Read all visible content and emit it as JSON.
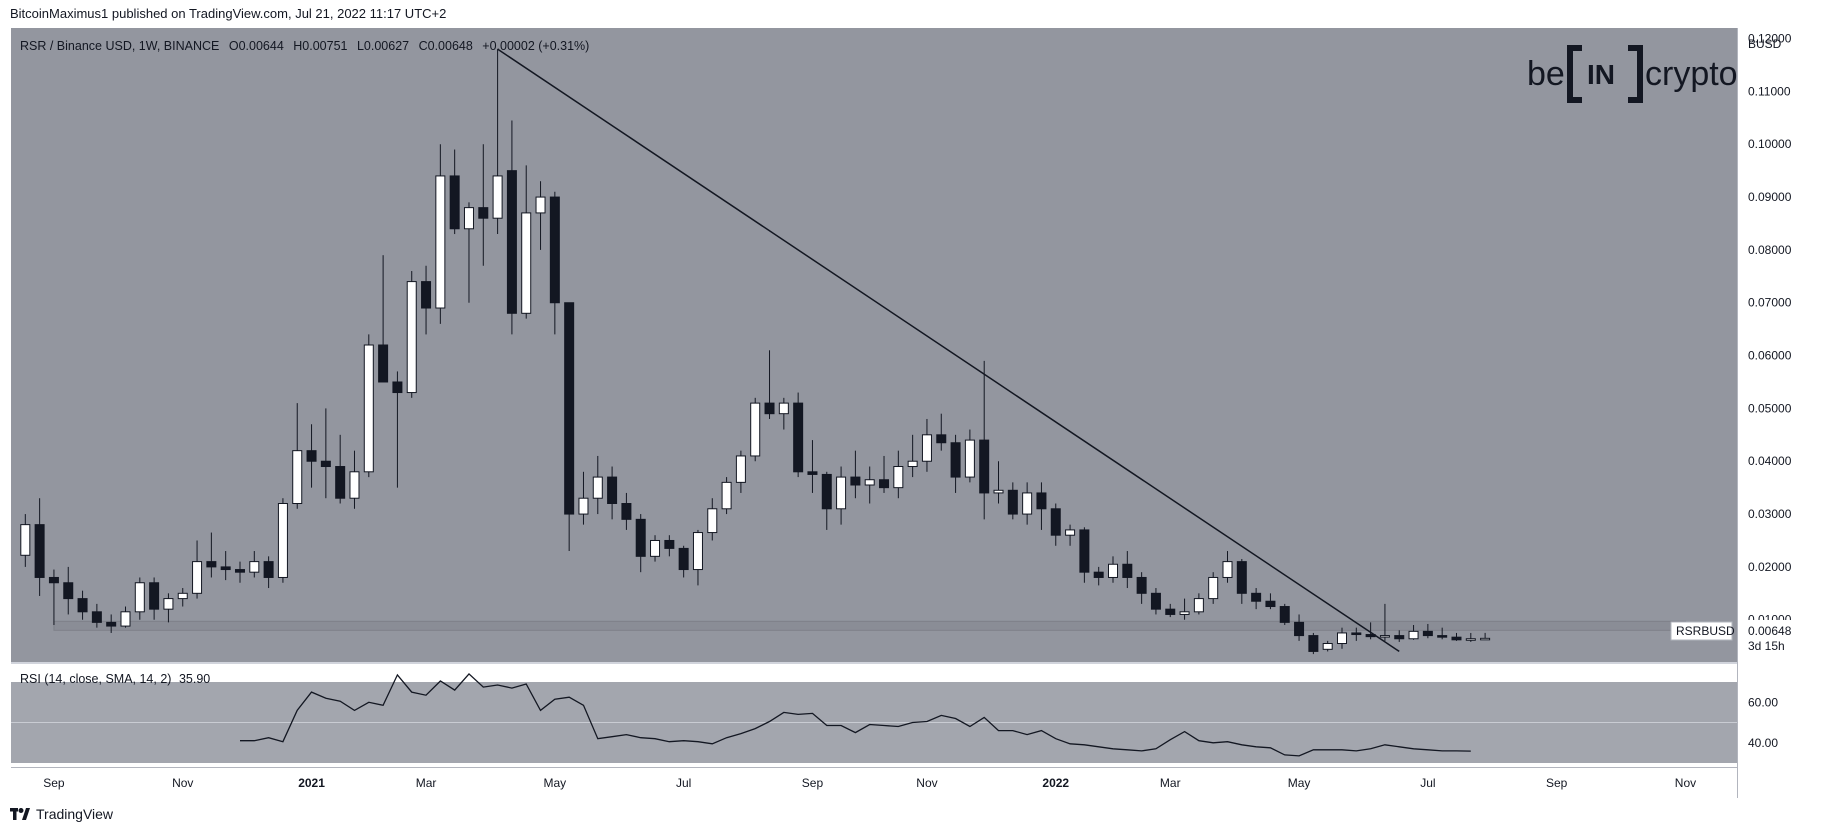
{
  "header": {
    "published": "BitcoinMaximus1 published on TradingView.com, Jul 21, 2022 11:17 UTC+2"
  },
  "legend": {
    "symbol": "RSR / Binance USD, 1W, BINANCE",
    "o_label": "O",
    "o": "0.00644",
    "h_label": "H",
    "h": "0.00751",
    "l_label": "L",
    "l": "0.00627",
    "c_label": "C",
    "c": "0.00648",
    "change": "+0.00002 (+0.31%)"
  },
  "brand": {
    "be": "be",
    "in": "IN",
    "crypto": "crypto"
  },
  "axis": {
    "currency": "BUSD"
  },
  "price_tag": {
    "symbol": "RSRBUSD",
    "value": "0.00648",
    "countdown": "3d 15h"
  },
  "rsi_legend": {
    "label": "RSI (14, close, SMA, 14, 2)",
    "value": "35.90"
  },
  "footer": {
    "brand": "TradingView"
  },
  "colors": {
    "background": "#93969f",
    "rsi_band": "#a3a6ae",
    "bull": "#ffffff",
    "bear": "#131722",
    "line": "#131722",
    "support_zone": "#8a8d96"
  },
  "chart_data": {
    "type": "candlestick",
    "timeframe": "1W",
    "price_axis": {
      "ylim": [
        0.002,
        0.122
      ],
      "ticks": [
        "0.12000",
        "0.11000",
        "0.10000",
        "0.09000",
        "0.08000",
        "0.07000",
        "0.06000",
        "0.05000",
        "0.04000",
        "0.03000",
        "0.02000",
        "0.01000"
      ]
    },
    "time_axis": {
      "ticks": [
        {
          "label": "Sep",
          "week": 3
        },
        {
          "label": "Nov",
          "week": 12
        },
        {
          "label": "2021",
          "week": 21
        },
        {
          "label": "Mar",
          "week": 29
        },
        {
          "label": "May",
          "week": 38
        },
        {
          "label": "Jul",
          "week": 47
        },
        {
          "label": "Sep",
          "week": 56
        },
        {
          "label": "Nov",
          "week": 64
        },
        {
          "label": "2022",
          "week": 73
        },
        {
          "label": "Mar",
          "week": 81
        },
        {
          "label": "May",
          "week": 90
        },
        {
          "label": "Jul",
          "week": 99
        },
        {
          "label": "Sep",
          "week": 108
        },
        {
          "label": "Nov",
          "week": 117
        }
      ],
      "range": [
        0,
        120.6
      ]
    },
    "candles": [
      {
        "w": 1,
        "o": 0.0222,
        "h": 0.03,
        "l": 0.02,
        "c": 0.028
      },
      {
        "w": 2,
        "o": 0.028,
        "h": 0.033,
        "l": 0.0145,
        "c": 0.018
      },
      {
        "w": 3,
        "o": 0.018,
        "h": 0.0195,
        "l": 0.009,
        "c": 0.017
      },
      {
        "w": 4,
        "o": 0.017,
        "h": 0.02,
        "l": 0.011,
        "c": 0.014
      },
      {
        "w": 5,
        "o": 0.014,
        "h": 0.0155,
        "l": 0.01,
        "c": 0.0115
      },
      {
        "w": 6,
        "o": 0.0115,
        "h": 0.013,
        "l": 0.0085,
        "c": 0.0095
      },
      {
        "w": 7,
        "o": 0.0095,
        "h": 0.011,
        "l": 0.0075,
        "c": 0.0088
      },
      {
        "w": 8,
        "o": 0.0088,
        "h": 0.0125,
        "l": 0.0085,
        "c": 0.0115
      },
      {
        "w": 9,
        "o": 0.0115,
        "h": 0.018,
        "l": 0.01,
        "c": 0.017
      },
      {
        "w": 10,
        "o": 0.017,
        "h": 0.018,
        "l": 0.01,
        "c": 0.012
      },
      {
        "w": 11,
        "o": 0.012,
        "h": 0.015,
        "l": 0.0095,
        "c": 0.014
      },
      {
        "w": 12,
        "o": 0.014,
        "h": 0.016,
        "l": 0.0125,
        "c": 0.015
      },
      {
        "w": 13,
        "o": 0.015,
        "h": 0.025,
        "l": 0.014,
        "c": 0.021
      },
      {
        "w": 14,
        "o": 0.021,
        "h": 0.0265,
        "l": 0.018,
        "c": 0.02
      },
      {
        "w": 15,
        "o": 0.02,
        "h": 0.023,
        "l": 0.0175,
        "c": 0.0195
      },
      {
        "w": 16,
        "o": 0.0195,
        "h": 0.021,
        "l": 0.017,
        "c": 0.019
      },
      {
        "w": 17,
        "o": 0.019,
        "h": 0.023,
        "l": 0.018,
        "c": 0.021
      },
      {
        "w": 18,
        "o": 0.021,
        "h": 0.022,
        "l": 0.016,
        "c": 0.018
      },
      {
        "w": 19,
        "o": 0.018,
        "h": 0.033,
        "l": 0.017,
        "c": 0.032
      },
      {
        "w": 20,
        "o": 0.032,
        "h": 0.051,
        "l": 0.031,
        "c": 0.042
      },
      {
        "w": 21,
        "o": 0.042,
        "h": 0.047,
        "l": 0.035,
        "c": 0.04
      },
      {
        "w": 22,
        "o": 0.04,
        "h": 0.05,
        "l": 0.033,
        "c": 0.039
      },
      {
        "w": 23,
        "o": 0.039,
        "h": 0.045,
        "l": 0.032,
        "c": 0.033
      },
      {
        "w": 24,
        "o": 0.033,
        "h": 0.042,
        "l": 0.031,
        "c": 0.038
      },
      {
        "w": 25,
        "o": 0.038,
        "h": 0.064,
        "l": 0.037,
        "c": 0.062
      },
      {
        "w": 26,
        "o": 0.062,
        "h": 0.079,
        "l": 0.055,
        "c": 0.055
      },
      {
        "w": 27,
        "o": 0.055,
        "h": 0.057,
        "l": 0.035,
        "c": 0.053
      },
      {
        "w": 28,
        "o": 0.053,
        "h": 0.076,
        "l": 0.052,
        "c": 0.074
      },
      {
        "w": 29,
        "o": 0.074,
        "h": 0.077,
        "l": 0.064,
        "c": 0.069
      },
      {
        "w": 30,
        "o": 0.069,
        "h": 0.1,
        "l": 0.066,
        "c": 0.094
      },
      {
        "w": 31,
        "o": 0.094,
        "h": 0.099,
        "l": 0.083,
        "c": 0.084
      },
      {
        "w": 32,
        "o": 0.084,
        "h": 0.089,
        "l": 0.07,
        "c": 0.088
      },
      {
        "w": 33,
        "o": 0.088,
        "h": 0.1,
        "l": 0.077,
        "c": 0.086
      },
      {
        "w": 34,
        "o": 0.086,
        "h": 0.118,
        "l": 0.083,
        "c": 0.094
      },
      {
        "w": 35,
        "o": 0.095,
        "h": 0.1045,
        "l": 0.064,
        "c": 0.068
      },
      {
        "w": 36,
        "o": 0.068,
        "h": 0.096,
        "l": 0.067,
        "c": 0.087
      },
      {
        "w": 37,
        "o": 0.087,
        "h": 0.093,
        "l": 0.08,
        "c": 0.09
      },
      {
        "w": 38,
        "o": 0.09,
        "h": 0.091,
        "l": 0.064,
        "c": 0.07
      },
      {
        "w": 39,
        "o": 0.07,
        "h": 0.07,
        "l": 0.023,
        "c": 0.03
      },
      {
        "w": 40,
        "o": 0.03,
        "h": 0.038,
        "l": 0.028,
        "c": 0.033
      },
      {
        "w": 41,
        "o": 0.033,
        "h": 0.041,
        "l": 0.03,
        "c": 0.037
      },
      {
        "w": 42,
        "o": 0.037,
        "h": 0.039,
        "l": 0.029,
        "c": 0.032
      },
      {
        "w": 43,
        "o": 0.032,
        "h": 0.034,
        "l": 0.027,
        "c": 0.029
      },
      {
        "w": 44,
        "o": 0.029,
        "h": 0.03,
        "l": 0.019,
        "c": 0.022
      },
      {
        "w": 45,
        "o": 0.022,
        "h": 0.026,
        "l": 0.021,
        "c": 0.025
      },
      {
        "w": 46,
        "o": 0.025,
        "h": 0.026,
        "l": 0.022,
        "c": 0.0235
      },
      {
        "w": 47,
        "o": 0.0235,
        "h": 0.024,
        "l": 0.018,
        "c": 0.0195
      },
      {
        "w": 48,
        "o": 0.0195,
        "h": 0.027,
        "l": 0.0165,
        "c": 0.0265
      },
      {
        "w": 49,
        "o": 0.0265,
        "h": 0.033,
        "l": 0.025,
        "c": 0.031
      },
      {
        "w": 50,
        "o": 0.031,
        "h": 0.037,
        "l": 0.03,
        "c": 0.036
      },
      {
        "w": 51,
        "o": 0.036,
        "h": 0.042,
        "l": 0.034,
        "c": 0.041
      },
      {
        "w": 52,
        "o": 0.041,
        "h": 0.052,
        "l": 0.04,
        "c": 0.051
      },
      {
        "w": 53,
        "o": 0.051,
        "h": 0.061,
        "l": 0.048,
        "c": 0.049
      },
      {
        "w": 54,
        "o": 0.049,
        "h": 0.052,
        "l": 0.046,
        "c": 0.051
      },
      {
        "w": 55,
        "o": 0.051,
        "h": 0.053,
        "l": 0.037,
        "c": 0.038
      },
      {
        "w": 56,
        "o": 0.038,
        "h": 0.044,
        "l": 0.034,
        "c": 0.0375
      },
      {
        "w": 57,
        "o": 0.0375,
        "h": 0.038,
        "l": 0.027,
        "c": 0.031
      },
      {
        "w": 58,
        "o": 0.031,
        "h": 0.039,
        "l": 0.028,
        "c": 0.037
      },
      {
        "w": 59,
        "o": 0.037,
        "h": 0.042,
        "l": 0.033,
        "c": 0.0355
      },
      {
        "w": 60,
        "o": 0.0355,
        "h": 0.039,
        "l": 0.032,
        "c": 0.0365
      },
      {
        "w": 61,
        "o": 0.0365,
        "h": 0.041,
        "l": 0.034,
        "c": 0.035
      },
      {
        "w": 62,
        "o": 0.035,
        "h": 0.042,
        "l": 0.033,
        "c": 0.039
      },
      {
        "w": 63,
        "o": 0.039,
        "h": 0.045,
        "l": 0.037,
        "c": 0.04
      },
      {
        "w": 64,
        "o": 0.04,
        "h": 0.048,
        "l": 0.038,
        "c": 0.045
      },
      {
        "w": 65,
        "o": 0.045,
        "h": 0.049,
        "l": 0.042,
        "c": 0.0435
      },
      {
        "w": 66,
        "o": 0.0435,
        "h": 0.045,
        "l": 0.034,
        "c": 0.037
      },
      {
        "w": 67,
        "o": 0.037,
        "h": 0.046,
        "l": 0.036,
        "c": 0.044
      },
      {
        "w": 68,
        "o": 0.044,
        "h": 0.059,
        "l": 0.029,
        "c": 0.034
      },
      {
        "w": 69,
        "o": 0.034,
        "h": 0.04,
        "l": 0.032,
        "c": 0.0345
      },
      {
        "w": 70,
        "o": 0.0345,
        "h": 0.036,
        "l": 0.029,
        "c": 0.03
      },
      {
        "w": 71,
        "o": 0.03,
        "h": 0.036,
        "l": 0.028,
        "c": 0.034
      },
      {
        "w": 72,
        "o": 0.034,
        "h": 0.036,
        "l": 0.027,
        "c": 0.031
      },
      {
        "w": 73,
        "o": 0.031,
        "h": 0.032,
        "l": 0.024,
        "c": 0.026
      },
      {
        "w": 74,
        "o": 0.026,
        "h": 0.028,
        "l": 0.024,
        "c": 0.027
      },
      {
        "w": 75,
        "o": 0.027,
        "h": 0.0275,
        "l": 0.017,
        "c": 0.019
      },
      {
        "w": 76,
        "o": 0.019,
        "h": 0.02,
        "l": 0.0165,
        "c": 0.018
      },
      {
        "w": 77,
        "o": 0.018,
        "h": 0.022,
        "l": 0.017,
        "c": 0.0205
      },
      {
        "w": 78,
        "o": 0.0205,
        "h": 0.023,
        "l": 0.016,
        "c": 0.018
      },
      {
        "w": 79,
        "o": 0.018,
        "h": 0.019,
        "l": 0.013,
        "c": 0.015
      },
      {
        "w": 80,
        "o": 0.015,
        "h": 0.016,
        "l": 0.011,
        "c": 0.012
      },
      {
        "w": 81,
        "o": 0.012,
        "h": 0.013,
        "l": 0.0105,
        "c": 0.011
      },
      {
        "w": 82,
        "o": 0.011,
        "h": 0.014,
        "l": 0.01,
        "c": 0.0115
      },
      {
        "w": 83,
        "o": 0.0115,
        "h": 0.015,
        "l": 0.011,
        "c": 0.014
      },
      {
        "w": 84,
        "o": 0.014,
        "h": 0.019,
        "l": 0.013,
        "c": 0.018
      },
      {
        "w": 85,
        "o": 0.018,
        "h": 0.023,
        "l": 0.017,
        "c": 0.021
      },
      {
        "w": 86,
        "o": 0.021,
        "h": 0.0215,
        "l": 0.013,
        "c": 0.015
      },
      {
        "w": 87,
        "o": 0.015,
        "h": 0.016,
        "l": 0.012,
        "c": 0.0135
      },
      {
        "w": 88,
        "o": 0.0135,
        "h": 0.015,
        "l": 0.012,
        "c": 0.0125
      },
      {
        "w": 89,
        "o": 0.0125,
        "h": 0.013,
        "l": 0.009,
        "c": 0.0095
      },
      {
        "w": 90,
        "o": 0.0095,
        "h": 0.011,
        "l": 0.006,
        "c": 0.007
      },
      {
        "w": 91,
        "o": 0.007,
        "h": 0.0075,
        "l": 0.0035,
        "c": 0.004
      },
      {
        "w": 92,
        "o": 0.0044,
        "h": 0.006,
        "l": 0.004,
        "c": 0.0055
      },
      {
        "w": 93,
        "o": 0.0055,
        "h": 0.0085,
        "l": 0.0045,
        "c": 0.0075
      },
      {
        "w": 94,
        "o": 0.0075,
        "h": 0.0085,
        "l": 0.006,
        "c": 0.0072
      },
      {
        "w": 95,
        "o": 0.0072,
        "h": 0.0095,
        "l": 0.0063,
        "c": 0.0068
      },
      {
        "w": 96,
        "o": 0.0068,
        "h": 0.013,
        "l": 0.006,
        "c": 0.007
      },
      {
        "w": 97,
        "o": 0.007,
        "h": 0.008,
        "l": 0.0058,
        "c": 0.0064
      },
      {
        "w": 98,
        "o": 0.0064,
        "h": 0.009,
        "l": 0.0062,
        "c": 0.0078
      },
      {
        "w": 99,
        "o": 0.0078,
        "h": 0.0092,
        "l": 0.0065,
        "c": 0.007
      },
      {
        "w": 100,
        "o": 0.007,
        "h": 0.0085,
        "l": 0.0063,
        "c": 0.0067
      },
      {
        "w": 101,
        "o": 0.0067,
        "h": 0.0075,
        "l": 0.006,
        "c": 0.0062
      },
      {
        "w": 102,
        "o": 0.0062,
        "h": 0.0075,
        "l": 0.0058,
        "c": 0.0064
      },
      {
        "w": 103,
        "o": 0.00644,
        "h": 0.00751,
        "l": 0.00627,
        "c": 0.00648
      }
    ],
    "trendline": {
      "from": {
        "w": 34,
        "price": 0.118
      },
      "to": {
        "w": 97,
        "price": 0.004
      }
    },
    "support_zone": {
      "from_w": 3,
      "to_w": 117,
      "low": 0.008,
      "high": 0.0097
    },
    "rsi": {
      "title": "RSI (14, close, SMA, 14, 2)",
      "ylim": [
        25,
        80
      ],
      "ticks": [
        "60.00",
        "40.00"
      ],
      "band": [
        30,
        70
      ],
      "points": [
        {
          "w": 16,
          "v": 41.0
        },
        {
          "w": 17,
          "v": 41.0
        },
        {
          "w": 18,
          "v": 42.5
        },
        {
          "w": 19,
          "v": 40.5
        },
        {
          "w": 20,
          "v": 56.0
        },
        {
          "w": 21,
          "v": 65.0
        },
        {
          "w": 22,
          "v": 62.0
        },
        {
          "w": 23,
          "v": 60.5
        },
        {
          "w": 24,
          "v": 56.0
        },
        {
          "w": 25,
          "v": 60.0
        },
        {
          "w": 26,
          "v": 58.5
        },
        {
          "w": 27,
          "v": 73.5
        },
        {
          "w": 28,
          "v": 65.0
        },
        {
          "w": 29,
          "v": 63.5
        },
        {
          "w": 30,
          "v": 70.5
        },
        {
          "w": 31,
          "v": 66.0
        },
        {
          "w": 32,
          "v": 74.0
        },
        {
          "w": 33,
          "v": 67.5
        },
        {
          "w": 34,
          "v": 68.5
        },
        {
          "w": 35,
          "v": 67.0
        },
        {
          "w": 36,
          "v": 69.0
        },
        {
          "w": 37,
          "v": 56.0
        },
        {
          "w": 38,
          "v": 61.5
        },
        {
          "w": 39,
          "v": 62.5
        },
        {
          "w": 40,
          "v": 58.5
        },
        {
          "w": 41,
          "v": 42.0
        },
        {
          "w": 42,
          "v": 43.0
        },
        {
          "w": 43,
          "v": 44.0
        },
        {
          "w": 44,
          "v": 42.5
        },
        {
          "w": 45,
          "v": 42.0
        },
        {
          "w": 46,
          "v": 40.5
        },
        {
          "w": 47,
          "v": 41.0
        },
        {
          "w": 48,
          "v": 40.5
        },
        {
          "w": 49,
          "v": 39.5
        },
        {
          "w": 50,
          "v": 42.5
        },
        {
          "w": 51,
          "v": 44.5
        },
        {
          "w": 52,
          "v": 47.0
        },
        {
          "w": 53,
          "v": 50.5
        },
        {
          "w": 54,
          "v": 55.0
        },
        {
          "w": 55,
          "v": 54.0
        },
        {
          "w": 56,
          "v": 54.5
        },
        {
          "w": 57,
          "v": 48.5
        },
        {
          "w": 58,
          "v": 48.5
        },
        {
          "w": 59,
          "v": 45.0
        },
        {
          "w": 60,
          "v": 49.0
        },
        {
          "w": 61,
          "v": 48.5
        },
        {
          "w": 62,
          "v": 48.0
        },
        {
          "w": 63,
          "v": 50.0
        },
        {
          "w": 64,
          "v": 50.5
        },
        {
          "w": 65,
          "v": 53.5
        },
        {
          "w": 66,
          "v": 52.0
        },
        {
          "w": 67,
          "v": 48.0
        },
        {
          "w": 68,
          "v": 52.5
        },
        {
          "w": 69,
          "v": 46.0
        },
        {
          "w": 70,
          "v": 46.0
        },
        {
          "w": 71,
          "v": 44.0
        },
        {
          "w": 72,
          "v": 46.0
        },
        {
          "w": 73,
          "v": 42.0
        },
        {
          "w": 74,
          "v": 39.5
        },
        {
          "w": 75,
          "v": 39.0
        },
        {
          "w": 76,
          "v": 38.0
        },
        {
          "w": 77,
          "v": 37.0
        },
        {
          "w": 78,
          "v": 36.5
        },
        {
          "w": 79,
          "v": 36.0
        },
        {
          "w": 80,
          "v": 37.0
        },
        {
          "w": 81,
          "v": 41.5
        },
        {
          "w": 82,
          "v": 45.5
        },
        {
          "w": 83,
          "v": 41.0
        },
        {
          "w": 84,
          "v": 40.0
        },
        {
          "w": 85,
          "v": 40.5
        },
        {
          "w": 86,
          "v": 39.0
        },
        {
          "w": 87,
          "v": 38.0
        },
        {
          "w": 88,
          "v": 37.5
        },
        {
          "w": 89,
          "v": 34.0
        },
        {
          "w": 90,
          "v": 33.5
        },
        {
          "w": 91,
          "v": 36.5
        },
        {
          "w": 92,
          "v": 36.5
        },
        {
          "w": 93,
          "v": 36.5
        },
        {
          "w": 94,
          "v": 36.0
        },
        {
          "w": 95,
          "v": 37.0
        },
        {
          "w": 96,
          "v": 39.0
        },
        {
          "w": 97,
          "v": 38.0
        },
        {
          "w": 98,
          "v": 37.0
        },
        {
          "w": 99,
          "v": 36.5
        },
        {
          "w": 100,
          "v": 36.0
        },
        {
          "w": 101,
          "v": 36.0
        },
        {
          "w": 102,
          "v": 35.9
        }
      ]
    }
  }
}
